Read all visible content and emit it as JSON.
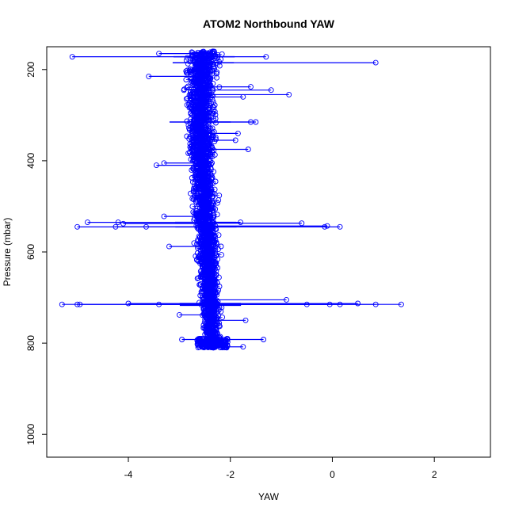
{
  "chart_data": {
    "type": "scatter",
    "title": "ATOM2 Northbound YAW",
    "xlabel": "YAW",
    "ylabel": "Pressure (mbar)",
    "xlim": [
      -5.6,
      3.1
    ],
    "ylim": [
      1050,
      150
    ],
    "y_reversed": true,
    "x_ticks": [
      -4,
      -2,
      0,
      2
    ],
    "x_tick_labels": [
      "-4",
      "-2",
      "0",
      "2"
    ],
    "y_ticks": [
      200,
      400,
      600,
      800,
      1000
    ],
    "y_tick_labels": [
      "200",
      "400",
      "600",
      "800",
      "1000"
    ],
    "grid": false,
    "legend": "none",
    "series": [
      {
        "color": "#0000ff",
        "marker": "open-circle",
        "connected": true,
        "profile": [
          {
            "pressure": 160,
            "center": -2.5,
            "spread": 0.55
          },
          {
            "pressure": 200,
            "center": -2.55,
            "spread": 0.5
          },
          {
            "pressure": 300,
            "center": -2.6,
            "spread": 0.45
          },
          {
            "pressure": 400,
            "center": -2.55,
            "spread": 0.4
          },
          {
            "pressure": 500,
            "center": -2.5,
            "spread": 0.35
          },
          {
            "pressure": 600,
            "center": -2.45,
            "spread": 0.35
          },
          {
            "pressure": 700,
            "center": -2.4,
            "spread": 0.3
          },
          {
            "pressure": 800,
            "center": -2.35,
            "spread": 0.25
          },
          {
            "pressure": 810,
            "center": -2.35,
            "spread": 0.2
          }
        ],
        "outliers": [
          {
            "x": -5.1,
            "y": 172
          },
          {
            "x": 0.85,
            "y": 185
          },
          {
            "x": -3.4,
            "y": 165
          },
          {
            "x": -1.3,
            "y": 172
          },
          {
            "x": -3.6,
            "y": 215
          },
          {
            "x": -0.85,
            "y": 255
          },
          {
            "x": -1.2,
            "y": 245
          },
          {
            "x": -1.6,
            "y": 238
          },
          {
            "x": -1.75,
            "y": 260
          },
          {
            "x": -1.5,
            "y": 315
          },
          {
            "x": -1.6,
            "y": 315
          },
          {
            "x": -1.85,
            "y": 340
          },
          {
            "x": -1.9,
            "y": 355
          },
          {
            "x": -1.65,
            "y": 375
          },
          {
            "x": -3.45,
            "y": 410
          },
          {
            "x": -3.3,
            "y": 405
          },
          {
            "x": -4.8,
            "y": 535
          },
          {
            "x": -4.2,
            "y": 535
          },
          {
            "x": -4.1,
            "y": 538
          },
          {
            "x": -5.0,
            "y": 545
          },
          {
            "x": -4.25,
            "y": 545
          },
          {
            "x": -3.65,
            "y": 545
          },
          {
            "x": -3.3,
            "y": 522
          },
          {
            "x": -1.8,
            "y": 535
          },
          {
            "x": -0.6,
            "y": 537
          },
          {
            "x": -0.1,
            "y": 543
          },
          {
            "x": -0.15,
            "y": 545
          },
          {
            "x": 0.15,
            "y": 545
          },
          {
            "x": -3.2,
            "y": 588
          },
          {
            "x": -5.3,
            "y": 715
          },
          {
            "x": -5.0,
            "y": 715
          },
          {
            "x": -4.95,
            "y": 715
          },
          {
            "x": -4.0,
            "y": 713
          },
          {
            "x": -3.4,
            "y": 715
          },
          {
            "x": -0.9,
            "y": 705
          },
          {
            "x": -0.5,
            "y": 715
          },
          {
            "x": -0.05,
            "y": 715
          },
          {
            "x": 0.15,
            "y": 715
          },
          {
            "x": 0.5,
            "y": 713
          },
          {
            "x": 0.85,
            "y": 715
          },
          {
            "x": 1.35,
            "y": 715
          },
          {
            "x": -3.0,
            "y": 738
          },
          {
            "x": -1.7,
            "y": 750
          },
          {
            "x": -2.95,
            "y": 792
          },
          {
            "x": -1.35,
            "y": 792
          },
          {
            "x": -1.75,
            "y": 808
          }
        ],
        "streak_levels": [
          172,
          185,
          315,
          535,
          545,
          713,
          715,
          717
        ]
      }
    ]
  }
}
